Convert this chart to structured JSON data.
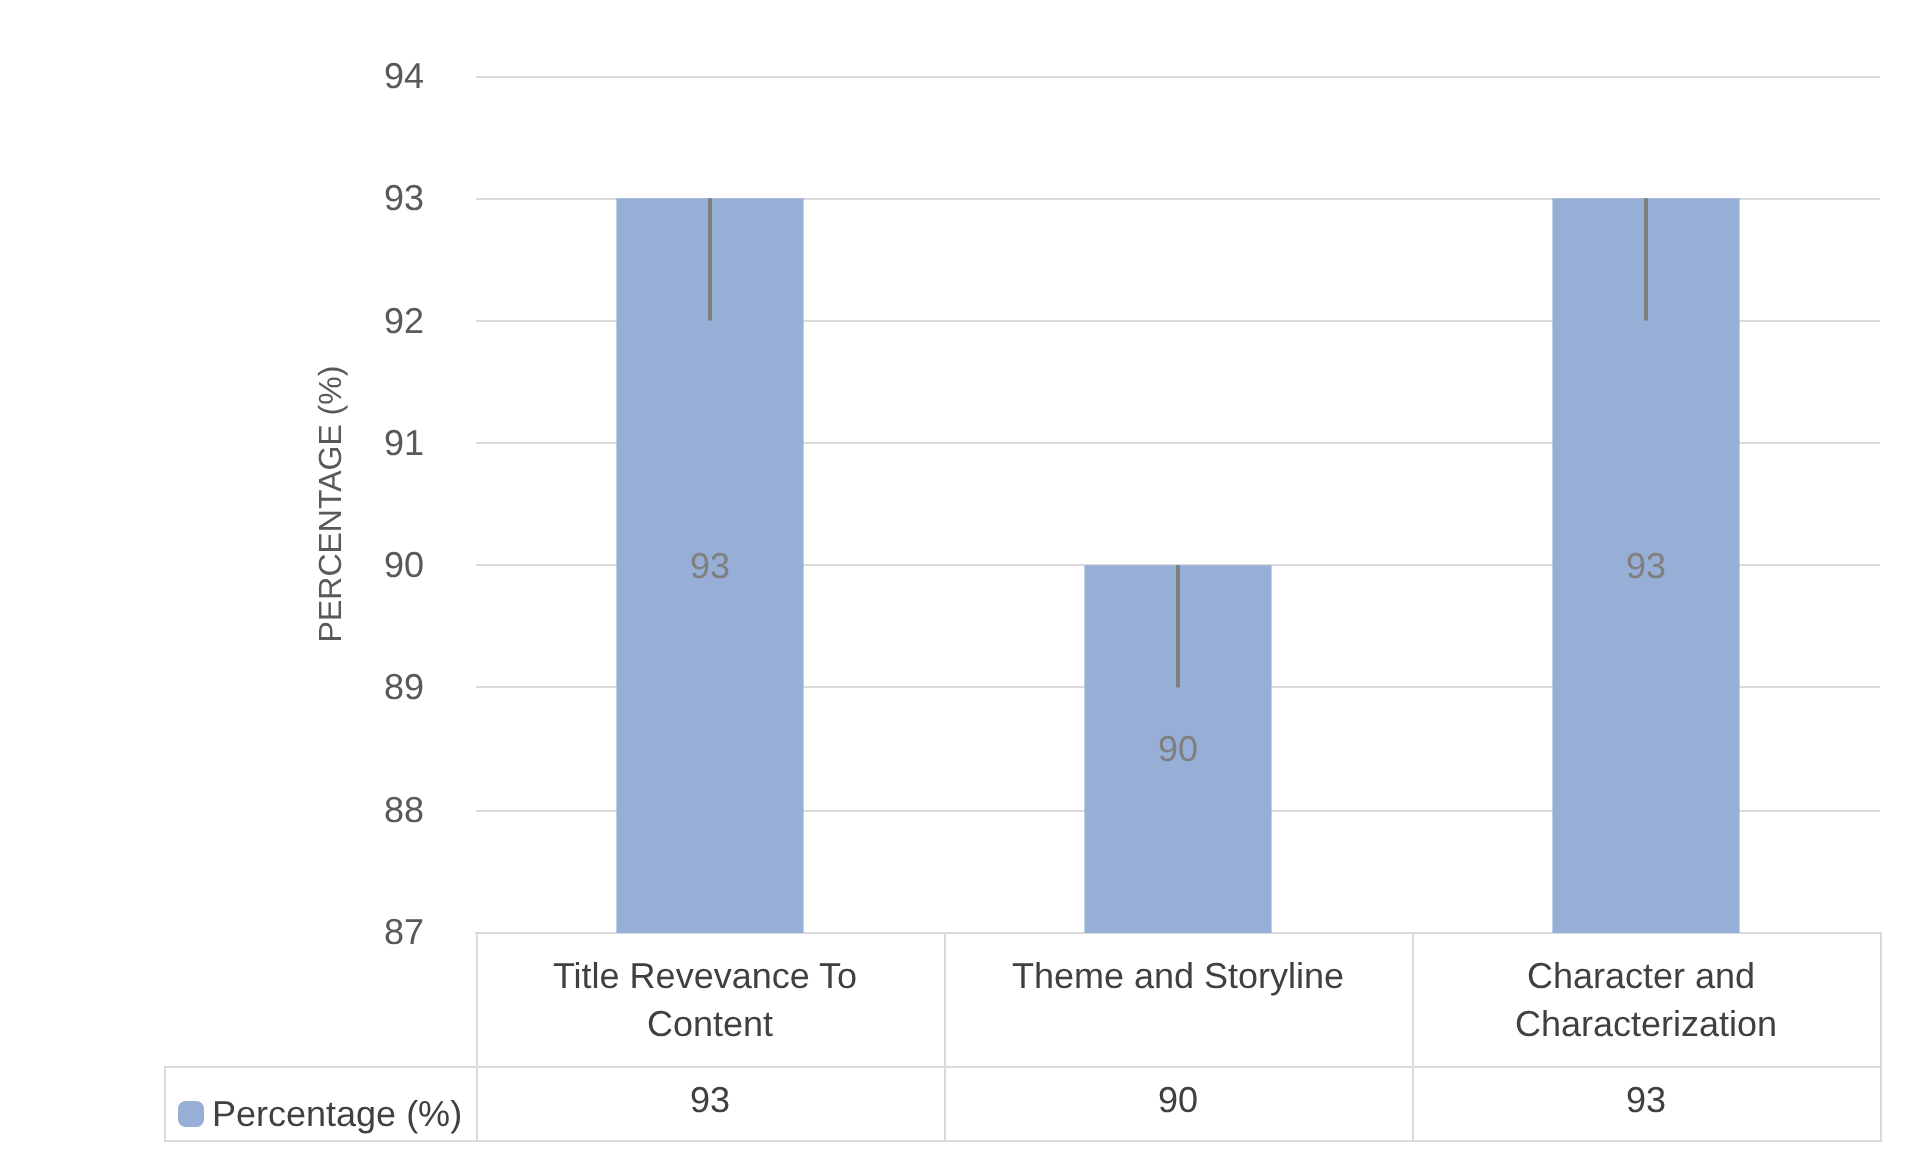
{
  "chart_data": {
    "type": "bar",
    "ylabel": "PERCENTAGE (%)",
    "categories": [
      "Title Revevance To Content",
      "Theme and Storyline",
      "Character and Characterization"
    ],
    "series": [
      {
        "name": "Percentage (%)",
        "color": "#97afd6",
        "values": [
          93,
          90,
          93
        ],
        "errors": [
          [
            92,
            93
          ],
          [
            89,
            90
          ],
          [
            92,
            93
          ]
        ],
        "value_labels": [
          "93",
          "90",
          "93"
        ]
      }
    ],
    "ylim": [
      87,
      94
    ],
    "yticks": [
      87,
      88,
      89,
      90,
      91,
      92,
      93,
      94
    ],
    "grid": "y",
    "legend": "bottom left",
    "data_labels": true
  }
}
